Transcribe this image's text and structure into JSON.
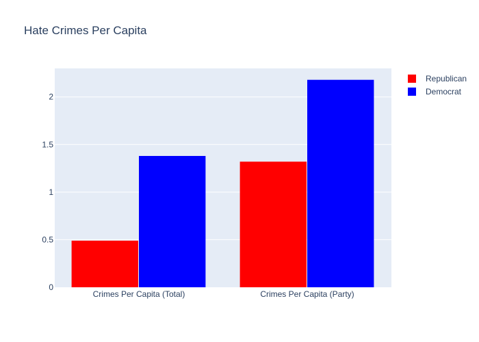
{
  "chart_data": {
    "type": "bar",
    "title": "Hate Crimes Per Capita",
    "categories": [
      "Crimes Per Capita (Total)",
      "Crimes Per Capita (Party)"
    ],
    "series": [
      {
        "name": "Republican",
        "color": "#ff0000",
        "values": [
          0.49,
          1.32
        ]
      },
      {
        "name": "Democrat",
        "color": "#0000ff",
        "values": [
          1.38,
          2.18
        ]
      }
    ],
    "xlabel": "",
    "ylabel": "",
    "ylim": [
      0,
      2.3
    ],
    "yticks": [
      {
        "value": 0,
        "label": "0"
      },
      {
        "value": 0.5,
        "label": "0.5"
      },
      {
        "value": 1,
        "label": "1"
      },
      {
        "value": 1.5,
        "label": "1.5"
      },
      {
        "value": 2,
        "label": "2"
      }
    ],
    "grid": true,
    "legend_position": "top-right",
    "plot_background": "#e5ecf6"
  }
}
